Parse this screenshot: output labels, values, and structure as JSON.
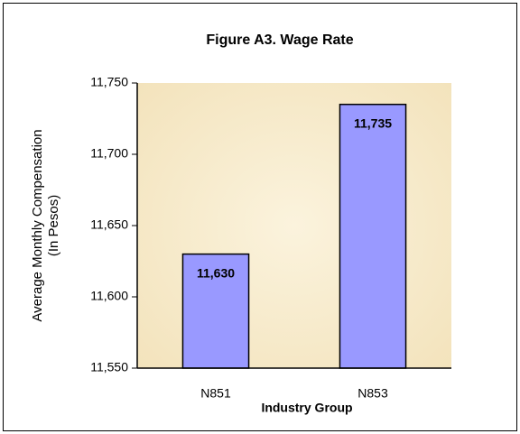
{
  "chart_data": {
    "type": "bar",
    "title": "Figure A3.  Wage Rate",
    "ylabel": [
      "Average Monthly Compensation",
      "(In Pesos)"
    ],
    "xlabel": "Industry Group",
    "categories": [
      "N851",
      "N853"
    ],
    "values": [
      11630,
      11735
    ],
    "value_labels": [
      "11,630",
      "11,735"
    ],
    "color": "#9999ff",
    "ylim": [
      11550,
      11750
    ],
    "yticks": [
      {
        "value": 11550,
        "label": "11,550"
      },
      {
        "value": 11600,
        "label": "11,600"
      },
      {
        "value": 11650,
        "label": "11,650"
      },
      {
        "value": 11700,
        "label": "11,700"
      },
      {
        "value": 11750,
        "label": "11,750"
      }
    ],
    "grid": false
  }
}
